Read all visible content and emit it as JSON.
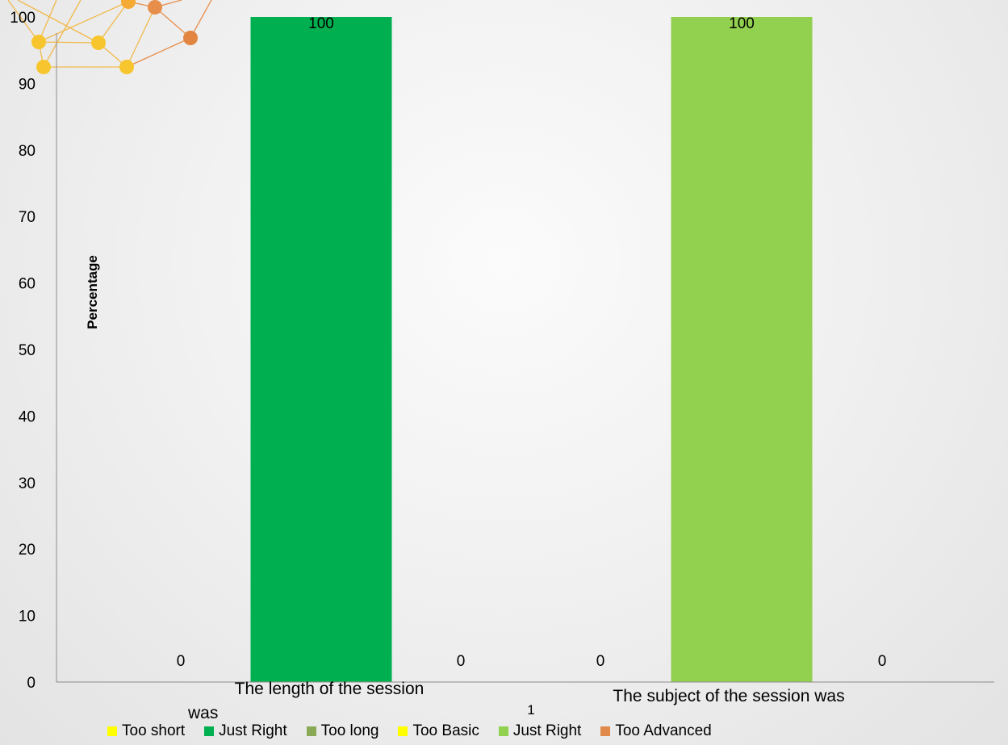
{
  "chart_data": {
    "type": "bar",
    "ylabel": "Percentage",
    "ylim": [
      0,
      100
    ],
    "yticks": [
      0,
      10,
      20,
      30,
      40,
      50,
      60,
      70,
      80,
      90,
      100
    ],
    "grid": false,
    "legend_position": "bottom",
    "x_tick_label": "1",
    "groups": [
      {
        "label": "The length of the session was",
        "label_lines": [
          "The length of the session",
          "was"
        ],
        "series": [
          {
            "name": "Too short",
            "value": 0,
            "color": "#FFFF00"
          },
          {
            "name": "Just Right",
            "value": 100,
            "color": "#00B050"
          },
          {
            "name": "Too long",
            "value": 0,
            "color": "#8AA956"
          }
        ]
      },
      {
        "label": "The subject of the session was",
        "label_lines": [
          "The subject of the session was"
        ],
        "series": [
          {
            "name": "Too Basic",
            "value": 0,
            "color": "#FFFF00"
          },
          {
            "name": "Just Right",
            "value": 100,
            "color": "#92D050"
          },
          {
            "name": "Too Advanced",
            "value": 0,
            "color": "#E0894A"
          }
        ]
      }
    ]
  }
}
